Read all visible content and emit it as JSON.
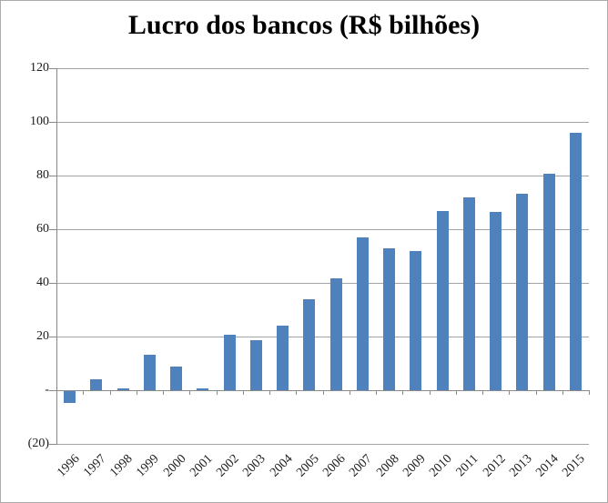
{
  "chart_data": {
    "type": "bar",
    "title": "Lucro dos bancos (R$ bilhões)",
    "categories": [
      "1996",
      "1997",
      "1998",
      "1999",
      "2000",
      "2001",
      "2002",
      "2003",
      "2004",
      "2005",
      "2006",
      "2007",
      "2008",
      "2009",
      "2010",
      "2011",
      "2012",
      "2013",
      "2014",
      "2015"
    ],
    "values": [
      -4.6,
      4.3,
      0.8,
      13.2,
      9,
      0.7,
      20.9,
      18.8,
      24.3,
      33.9,
      41.8,
      57,
      52.8,
      51.9,
      66.9,
      72,
      66.6,
      73.2,
      80.7,
      95.9
    ],
    "xlabel": "",
    "ylabel": "",
    "ylim": [
      -20,
      120
    ],
    "y_ticks": [
      {
        "v": 120,
        "label": "120"
      },
      {
        "v": 100,
        "label": "100"
      },
      {
        "v": 80,
        "label": "80"
      },
      {
        "v": 60,
        "label": "60"
      },
      {
        "v": 40,
        "label": "40"
      },
      {
        "v": 20,
        "label": "20"
      },
      {
        "v": 0,
        "label": "-"
      },
      {
        "v": -20,
        "label": "(20)"
      }
    ],
    "grid": true,
    "legend": "none",
    "bar_color": "#4f81bd",
    "gridline_color": "#a3a3a3",
    "axis_color": "#898989",
    "text_color": "#1a1a1a",
    "negative_number_format": "parentheses"
  }
}
